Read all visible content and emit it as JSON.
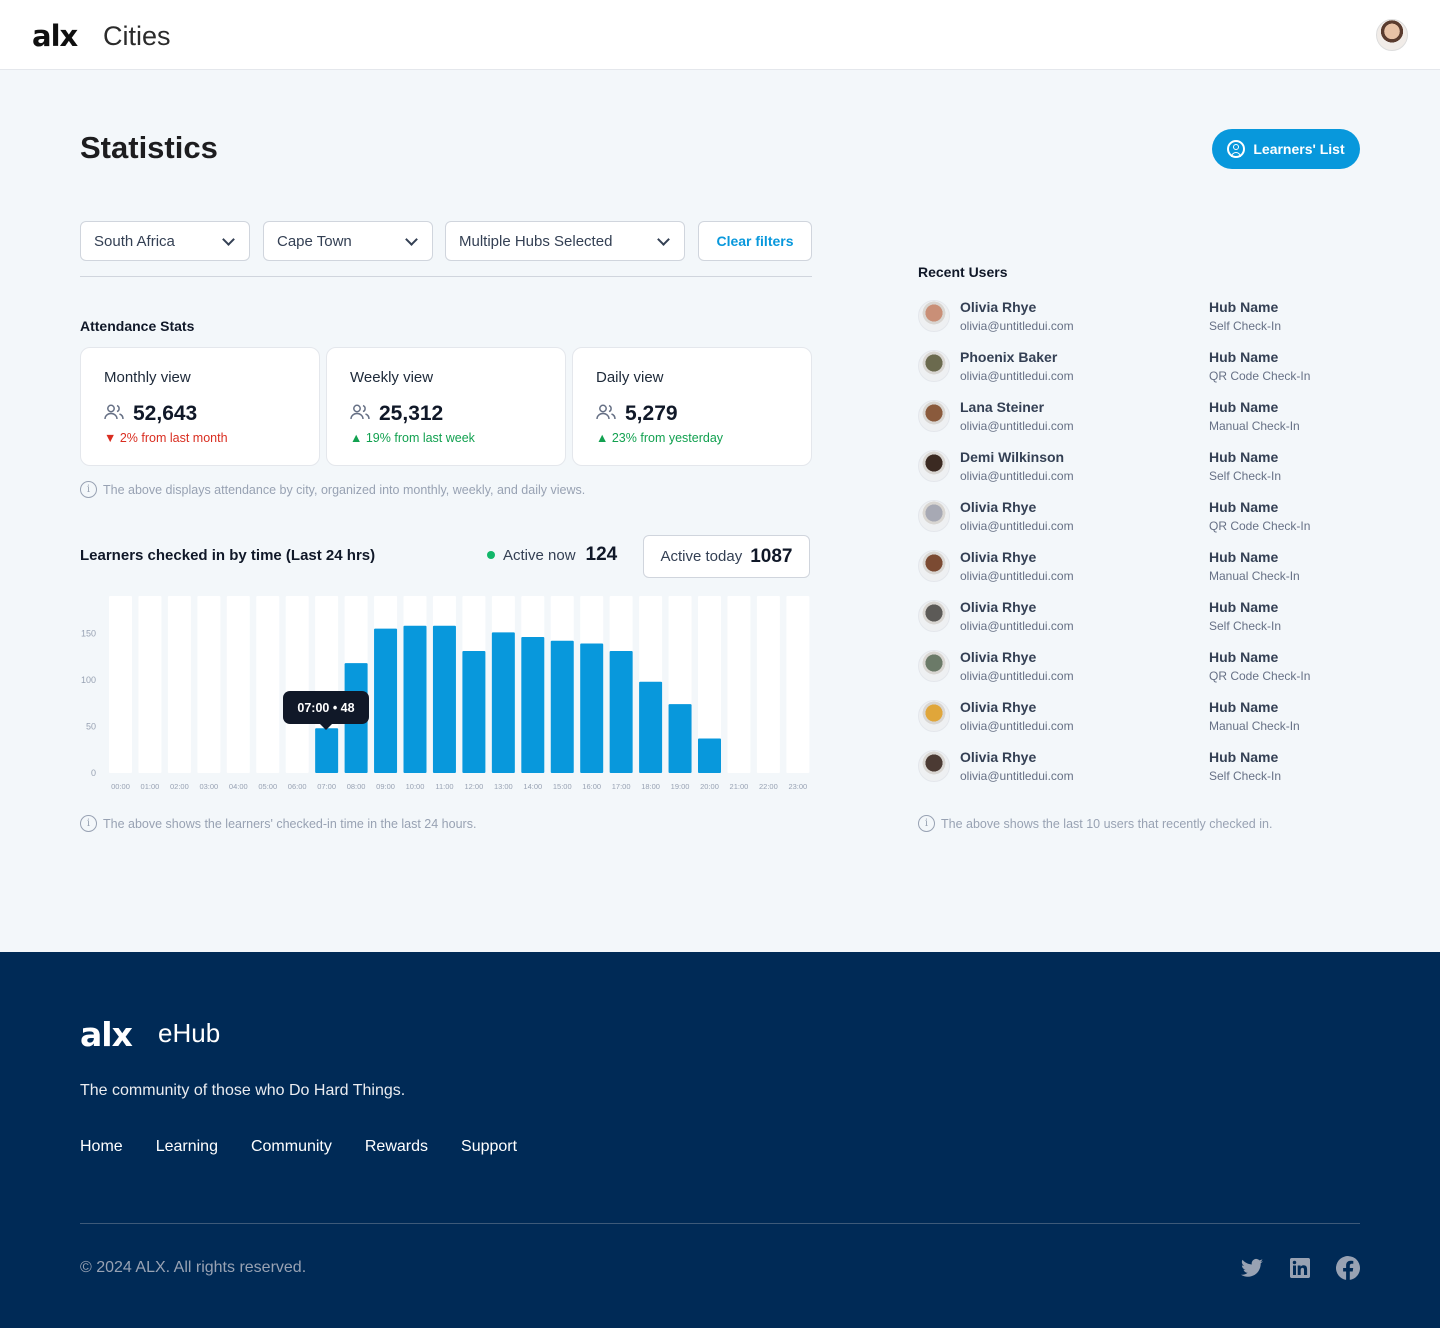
{
  "header": {
    "logo": "alx",
    "app_title": "Cities"
  },
  "page": {
    "title": "Statistics",
    "learners_list_label": "Learners' List"
  },
  "filters": {
    "country": "South Africa",
    "city": "Cape Town",
    "hubs": "Multiple Hubs Selected",
    "clear_label": "Clear filters"
  },
  "attendance": {
    "heading": "Attendance Stats",
    "cards": [
      {
        "title": "Monthly view",
        "value": "52,643",
        "delta": "2% from last month",
        "trend": "down"
      },
      {
        "title": "Weekly view",
        "value": "25,312",
        "delta": "19% from last week",
        "trend": "up"
      },
      {
        "title": "Daily view",
        "value": "5,279",
        "delta": "23% from yesterday",
        "trend": "up"
      }
    ],
    "note": "The above displays attendance by city, organized into monthly, weekly, and daily views."
  },
  "checkins": {
    "title": "Learners checked in by time (Last 24 hrs)",
    "active_now_label": "Active now",
    "active_now_value": "124",
    "active_today_label": "Active today",
    "active_today_value": "1087",
    "tooltip": "07:00 • 48",
    "note": "The above shows the learners' checked-in time in the last 24 hours."
  },
  "chart_data": {
    "type": "bar",
    "categories": [
      "00:00",
      "01:00",
      "02:00",
      "03:00",
      "04:00",
      "05:00",
      "06:00",
      "07:00",
      "08:00",
      "09:00",
      "10:00",
      "11:00",
      "12:00",
      "13:00",
      "14:00",
      "15:00",
      "16:00",
      "17:00",
      "18:00",
      "19:00",
      "20:00",
      "21:00",
      "22:00",
      "23:00"
    ],
    "values": [
      0,
      0,
      0,
      0,
      0,
      0,
      0,
      48,
      118,
      155,
      158,
      158,
      131,
      151,
      146,
      142,
      139,
      131,
      98,
      74,
      37,
      0,
      0,
      0
    ],
    "yticks": [
      0,
      50,
      100,
      150
    ],
    "ylim": [
      0,
      190
    ],
    "bar_color": "#0898dc",
    "track_color": "#ffffff",
    "grid": false
  },
  "recent_users": {
    "heading": "Recent Users",
    "users": [
      {
        "name": "Olivia Rhye",
        "email": "olivia@untitledui.com",
        "hub": "Hub Name",
        "method": "Self Check-In",
        "avatar_color": "#c98f77"
      },
      {
        "name": "Phoenix Baker",
        "email": "olivia@untitledui.com",
        "hub": "Hub Name",
        "method": "QR Code Check-In",
        "avatar_color": "#6b6a4e"
      },
      {
        "name": "Lana Steiner",
        "email": "olivia@untitledui.com",
        "hub": "Hub Name",
        "method": "Manual Check-In",
        "avatar_color": "#8a5a3c"
      },
      {
        "name": "Demi Wilkinson",
        "email": "olivia@untitledui.com",
        "hub": "Hub Name",
        "method": "Self Check-In",
        "avatar_color": "#3b2a22"
      },
      {
        "name": "Olivia Rhye",
        "email": "olivia@untitledui.com",
        "hub": "Hub Name",
        "method": "QR Code Check-In",
        "avatar_color": "#a7a9b4"
      },
      {
        "name": "Olivia Rhye",
        "email": "olivia@untitledui.com",
        "hub": "Hub Name",
        "method": "Manual Check-In",
        "avatar_color": "#7b4a32"
      },
      {
        "name": "Olivia Rhye",
        "email": "olivia@untitledui.com",
        "hub": "Hub Name",
        "method": "Self Check-In",
        "avatar_color": "#5c5a57"
      },
      {
        "name": "Olivia Rhye",
        "email": "olivia@untitledui.com",
        "hub": "Hub Name",
        "method": "QR Code Check-In",
        "avatar_color": "#6b7a68"
      },
      {
        "name": "Olivia Rhye",
        "email": "olivia@untitledui.com",
        "hub": "Hub Name",
        "method": "Manual Check-In",
        "avatar_color": "#e0a63a"
      },
      {
        "name": "Olivia Rhye",
        "email": "olivia@untitledui.com",
        "hub": "Hub Name",
        "method": "Self Check-In",
        "avatar_color": "#4b3a33"
      }
    ],
    "note": "The above shows the last 10 users that recently checked in."
  },
  "footer": {
    "logo": "alx",
    "product": "eHub",
    "tagline": "The community of those who Do Hard Things.",
    "links": [
      "Home",
      "Learning",
      "Community",
      "Rewards",
      "Support"
    ],
    "copyright": "© 2024 ALX. All rights reserved.",
    "social_icons": [
      "twitter-icon",
      "linkedin-icon",
      "facebook-icon"
    ]
  }
}
